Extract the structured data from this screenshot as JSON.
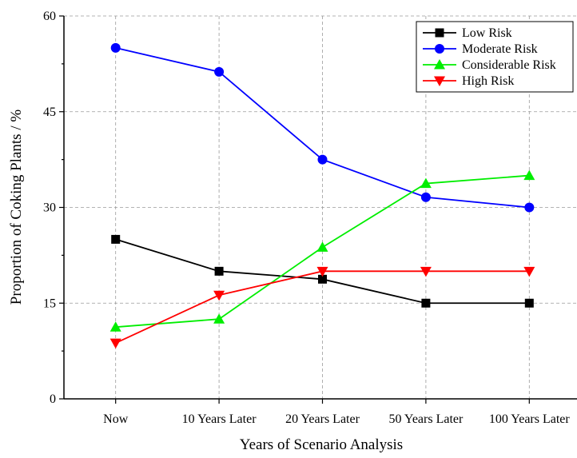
{
  "chart_data": {
    "type": "line",
    "title": "",
    "xlabel": "Years of Scenario Analysis",
    "ylabel": "Proportion of Coking Plants / %",
    "categories": [
      "Now",
      "10 Years Later",
      "20 Years Later",
      "50 Years Later",
      "100 Years Later"
    ],
    "ylim": [
      0,
      60
    ],
    "yticks": [
      0,
      15,
      30,
      45,
      60
    ],
    "grid": true,
    "legend_position": "top-right",
    "series": [
      {
        "name": "Low Risk",
        "color": "#000000",
        "marker": "square",
        "values": [
          25.0,
          20.0,
          18.75,
          15.0,
          15.0
        ]
      },
      {
        "name": "Moderate Risk",
        "color": "#0000ff",
        "marker": "circle",
        "values": [
          55.0,
          51.25,
          37.5,
          31.6,
          30.0
        ]
      },
      {
        "name": "Considerable Risk",
        "color": "#00ee00",
        "marker": "triangle-up",
        "values": [
          11.25,
          12.5,
          23.75,
          33.75,
          35.0
        ]
      },
      {
        "name": "High Risk",
        "color": "#ff0000",
        "marker": "triangle-down",
        "values": [
          8.75,
          16.25,
          20.0,
          20.0,
          20.0
        ]
      }
    ]
  }
}
